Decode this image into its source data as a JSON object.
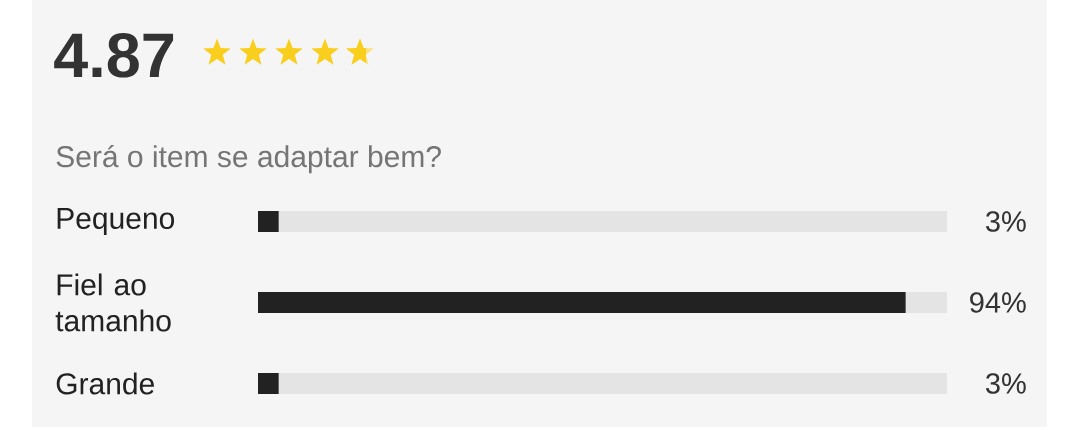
{
  "chart_data": {
    "type": "bar",
    "orientation": "horizontal",
    "stacked": true,
    "title": "4.87",
    "subtitle": "Será o item se adaptar bem?",
    "categories": [
      "Pequeno",
      "Fiel ao tamanho",
      "Grande"
    ],
    "series": [
      {
        "color": "#222222",
        "values": [
          3,
          94,
          3
        ],
        "value_labels": [
          "3%",
          "94%",
          "3%"
        ]
      },
      {
        "color": "#e4e4e4",
        "values": [
          97,
          6,
          97
        ]
      }
    ],
    "xlim": [
      0,
      100
    ],
    "tick_labels": "y"
  }
}
